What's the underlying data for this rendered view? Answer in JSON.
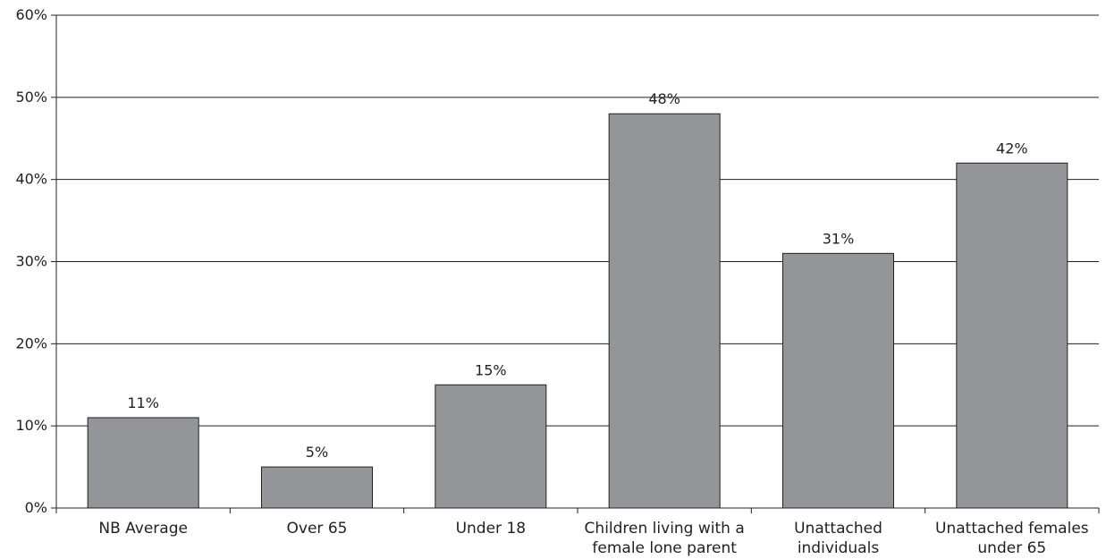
{
  "chart_data": {
    "type": "bar",
    "title": "",
    "xlabel": "",
    "ylabel": "",
    "ylim": [
      0,
      60
    ],
    "y_ticks": [
      "0%",
      "10%",
      "20%",
      "30%",
      "40%",
      "50%",
      "60%"
    ],
    "grid": true,
    "categories": [
      [
        "NB Average"
      ],
      [
        "Over 65"
      ],
      [
        "Under 18"
      ],
      [
        "Children living with a",
        "female lone parent"
      ],
      [
        "Unattached",
        "individuals"
      ],
      [
        "Unattached females",
        "under 65"
      ]
    ],
    "values": [
      11,
      5,
      15,
      48,
      31,
      42
    ],
    "data_labels": [
      "11%",
      "5%",
      "15%",
      "48%",
      "31%",
      "42%"
    ],
    "colors": {
      "bar_fill": "#939598",
      "bar_stroke": "#231f20",
      "axis": "#231f20",
      "grid": "#231f20",
      "text": "#231f20"
    }
  }
}
